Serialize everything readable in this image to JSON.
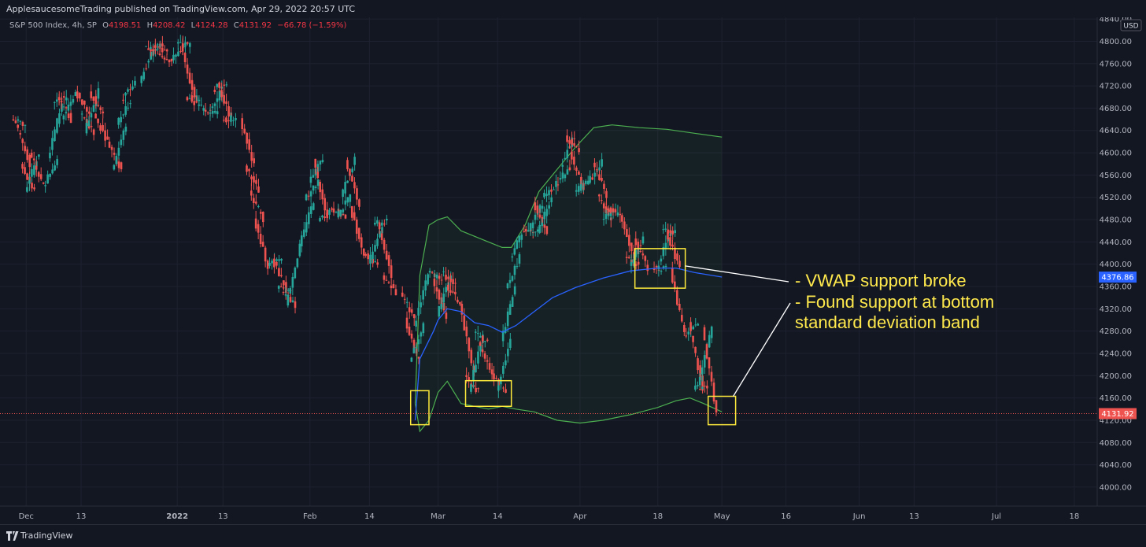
{
  "header": {
    "published_by": "ApplesaucesomeTrading published on TradingView.com, Apr 29, 2022 20:57 UTC"
  },
  "legend": {
    "symbol": "S&P 500 Index, 4h, SP",
    "open_label": "O",
    "open": "4198.51",
    "high_label": "H",
    "high": "4208.42",
    "low_label": "L",
    "low": "4124.28",
    "close_label": "C",
    "close": "4131.92",
    "change": "−66.78 (−1.59%)"
  },
  "footer": {
    "brand": "TradingView",
    "logo_icon": "tradingview-logo-icon"
  },
  "colors": {
    "background": "#131722",
    "up": "#26a69a",
    "down": "#ef5350",
    "vwap": "#2962ff",
    "band": "#4caf50",
    "annotation": "#ffeb3b"
  },
  "annotations": {
    "line1": "- VWAP support broke",
    "line2": "- Found support at bottom",
    "line3": "standard deviation band"
  },
  "chart_data": {
    "type": "candlestick",
    "title": "",
    "currency_label": "USD",
    "ylim": [
      3966,
      4843
    ],
    "y_ticks": [
      4000,
      4040,
      4080,
      4120,
      4160,
      4200,
      4240,
      4280,
      4320,
      4360,
      4400,
      4440,
      4480,
      4520,
      4560,
      4600,
      4640,
      4680,
      4720,
      4760,
      4800,
      4840
    ],
    "y_tick_labels": [
      "4000.00",
      "4040.00",
      "4080.00",
      "4120.00",
      "4160.00",
      "4200.00",
      "4240.00",
      "4280.00",
      "4320.00",
      "4360.00",
      "4400.00",
      "4440.00",
      "4480.00",
      "4520.00",
      "4560.00",
      "4600.00",
      "4640.00",
      "4680.00",
      "4720.00",
      "4760.00",
      "4800.00",
      "4840.00"
    ],
    "x_range": [
      "2021-11-27",
      "2022-07-23"
    ],
    "x_ticks": [
      {
        "date": "2021-12-01",
        "label": "Dec"
      },
      {
        "date": "2021-12-13",
        "label": "13"
      },
      {
        "date": "2022-01-03",
        "label": "2022"
      },
      {
        "date": "2022-01-13",
        "label": "13"
      },
      {
        "date": "2022-02-01",
        "label": "Feb"
      },
      {
        "date": "2022-02-14",
        "label": "14"
      },
      {
        "date": "2022-03-01",
        "label": "Mar"
      },
      {
        "date": "2022-03-14",
        "label": "14"
      },
      {
        "date": "2022-04-01",
        "label": "Apr"
      },
      {
        "date": "2022-04-18",
        "label": "18"
      },
      {
        "date": "2022-05-02",
        "label": "May"
      },
      {
        "date": "2022-05-16",
        "label": "16"
      },
      {
        "date": "2022-06-01",
        "label": "Jun"
      },
      {
        "date": "2022-06-13",
        "label": "13"
      },
      {
        "date": "2022-07-01",
        "label": "Jul"
      },
      {
        "date": "2022-07-18",
        "label": "18"
      }
    ],
    "last_price": 4131.92,
    "last_price_label": "4131.92",
    "vwap_last": 4376.86,
    "vwap_last_label": "4376.86",
    "close_path": [
      {
        "d": "2021-11-29",
        "c": 4650
      },
      {
        "d": "2021-11-30",
        "c": 4580
      },
      {
        "d": "2021-12-01",
        "c": 4530
      },
      {
        "d": "2021-12-02",
        "c": 4600
      },
      {
        "d": "2021-12-03",
        "c": 4540
      },
      {
        "d": "2021-12-06",
        "c": 4590
      },
      {
        "d": "2021-12-07",
        "c": 4690
      },
      {
        "d": "2021-12-08",
        "c": 4700
      },
      {
        "d": "2021-12-09",
        "c": 4660
      },
      {
        "d": "2021-12-10",
        "c": 4710
      },
      {
        "d": "2021-12-13",
        "c": 4670
      },
      {
        "d": "2021-12-14",
        "c": 4635
      },
      {
        "d": "2021-12-15",
        "c": 4710
      },
      {
        "d": "2021-12-16",
        "c": 4670
      },
      {
        "d": "2021-12-17",
        "c": 4620
      },
      {
        "d": "2021-12-20",
        "c": 4570
      },
      {
        "d": "2021-12-21",
        "c": 4650
      },
      {
        "d": "2021-12-22",
        "c": 4695
      },
      {
        "d": "2021-12-23",
        "c": 4725
      },
      {
        "d": "2021-12-27",
        "c": 4790
      },
      {
        "d": "2021-12-28",
        "c": 4786
      },
      {
        "d": "2021-12-29",
        "c": 4793
      },
      {
        "d": "2021-12-30",
        "c": 4778
      },
      {
        "d": "2021-12-31",
        "c": 4766
      },
      {
        "d": "2022-01-03",
        "c": 4796
      },
      {
        "d": "2022-01-04",
        "c": 4793
      },
      {
        "d": "2022-01-05",
        "c": 4700
      },
      {
        "d": "2022-01-06",
        "c": 4696
      },
      {
        "d": "2022-01-07",
        "c": 4677
      },
      {
        "d": "2022-01-10",
        "c": 4670
      },
      {
        "d": "2022-01-11",
        "c": 4713
      },
      {
        "d": "2022-01-12",
        "c": 4726
      },
      {
        "d": "2022-01-13",
        "c": 4659
      },
      {
        "d": "2022-01-14",
        "c": 4662
      },
      {
        "d": "2022-01-18",
        "c": 4577
      },
      {
        "d": "2022-01-19",
        "c": 4532
      },
      {
        "d": "2022-01-20",
        "c": 4482
      },
      {
        "d": "2022-01-21",
        "c": 4397
      },
      {
        "d": "2022-01-24",
        "c": 4410
      },
      {
        "d": "2022-01-25",
        "c": 4356
      },
      {
        "d": "2022-01-26",
        "c": 4350
      },
      {
        "d": "2022-01-27",
        "c": 4326
      },
      {
        "d": "2022-01-28",
        "c": 4432
      },
      {
        "d": "2022-01-31",
        "c": 4515
      },
      {
        "d": "2022-02-01",
        "c": 4546
      },
      {
        "d": "2022-02-02",
        "c": 4589
      },
      {
        "d": "2022-02-03",
        "c": 4477
      },
      {
        "d": "2022-02-04",
        "c": 4500
      },
      {
        "d": "2022-02-07",
        "c": 4484
      },
      {
        "d": "2022-02-08",
        "c": 4521
      },
      {
        "d": "2022-02-09",
        "c": 4587
      },
      {
        "d": "2022-02-10",
        "c": 4504
      },
      {
        "d": "2022-02-11",
        "c": 4418
      },
      {
        "d": "2022-02-14",
        "c": 4401
      },
      {
        "d": "2022-02-15",
        "c": 4471
      },
      {
        "d": "2022-02-16",
        "c": 4475
      },
      {
        "d": "2022-02-17",
        "c": 4380
      },
      {
        "d": "2022-02-18",
        "c": 4349
      },
      {
        "d": "2022-02-22",
        "c": 4304
      },
      {
        "d": "2022-02-23",
        "c": 4225
      },
      {
        "d": "2022-02-24",
        "c": 4288
      },
      {
        "d": "2022-02-25",
        "c": 4385
      },
      {
        "d": "2022-02-28",
        "c": 4374
      },
      {
        "d": "2022-03-01",
        "c": 4306
      },
      {
        "d": "2022-03-02",
        "c": 4386
      },
      {
        "d": "2022-03-03",
        "c": 4363
      },
      {
        "d": "2022-03-04",
        "c": 4329
      },
      {
        "d": "2022-03-07",
        "c": 4201
      },
      {
        "d": "2022-03-08",
        "c": 4171
      },
      {
        "d": "2022-03-09",
        "c": 4277
      },
      {
        "d": "2022-03-10",
        "c": 4260
      },
      {
        "d": "2022-03-11",
        "c": 4204
      },
      {
        "d": "2022-03-14",
        "c": 4173
      },
      {
        "d": "2022-03-15",
        "c": 4262
      },
      {
        "d": "2022-03-16",
        "c": 4357
      },
      {
        "d": "2022-03-17",
        "c": 4412
      },
      {
        "d": "2022-03-18",
        "c": 4463
      },
      {
        "d": "2022-03-21",
        "c": 4461
      },
      {
        "d": "2022-03-22",
        "c": 4511
      },
      {
        "d": "2022-03-23",
        "c": 4456
      },
      {
        "d": "2022-03-24",
        "c": 4520
      },
      {
        "d": "2022-03-25",
        "c": 4543
      },
      {
        "d": "2022-03-28",
        "c": 4575
      },
      {
        "d": "2022-03-29",
        "c": 4631
      },
      {
        "d": "2022-03-30",
        "c": 4602
      },
      {
        "d": "2022-03-31",
        "c": 4530
      },
      {
        "d": "2022-04-01",
        "c": 4546
      },
      {
        "d": "2022-04-04",
        "c": 4582
      },
      {
        "d": "2022-04-05",
        "c": 4525
      },
      {
        "d": "2022-04-06",
        "c": 4481
      },
      {
        "d": "2022-04-07",
        "c": 4500
      },
      {
        "d": "2022-04-08",
        "c": 4488
      },
      {
        "d": "2022-04-11",
        "c": 4413
      },
      {
        "d": "2022-04-12",
        "c": 4397
      },
      {
        "d": "2022-04-13",
        "c": 4446
      },
      {
        "d": "2022-04-14",
        "c": 4392
      },
      {
        "d": "2022-04-18",
        "c": 4391
      },
      {
        "d": "2022-04-19",
        "c": 4462
      },
      {
        "d": "2022-04-20",
        "c": 4459
      },
      {
        "d": "2022-04-21",
        "c": 4393
      },
      {
        "d": "2022-04-22",
        "c": 4272
      },
      {
        "d": "2022-04-25",
        "c": 4296
      },
      {
        "d": "2022-04-26",
        "c": 4175
      },
      {
        "d": "2022-04-27",
        "c": 4183
      },
      {
        "d": "2022-04-28",
        "c": 4287
      },
      {
        "d": "2022-04-29",
        "c": 4132
      }
    ],
    "vwap": [
      {
        "d": "2022-02-24",
        "v": 4120
      },
      {
        "d": "2022-02-25",
        "v": 4230
      },
      {
        "d": "2022-02-28",
        "v": 4280
      },
      {
        "d": "2022-03-01",
        "v": 4300
      },
      {
        "d": "2022-03-03",
        "v": 4320
      },
      {
        "d": "2022-03-06",
        "v": 4315
      },
      {
        "d": "2022-03-09",
        "v": 4295
      },
      {
        "d": "2022-03-12",
        "v": 4290
      },
      {
        "d": "2022-03-15",
        "v": 4278
      },
      {
        "d": "2022-03-18",
        "v": 4290
      },
      {
        "d": "2022-03-22",
        "v": 4315
      },
      {
        "d": "2022-03-26",
        "v": 4340
      },
      {
        "d": "2022-03-31",
        "v": 4358
      },
      {
        "d": "2022-04-06",
        "v": 4375
      },
      {
        "d": "2022-04-12",
        "v": 4388
      },
      {
        "d": "2022-04-18",
        "v": 4393
      },
      {
        "d": "2022-04-22",
        "v": 4393
      },
      {
        "d": "2022-04-26",
        "v": 4385
      },
      {
        "d": "2022-05-02",
        "v": 4377
      }
    ],
    "upper_band": [
      {
        "d": "2022-02-24",
        "v": 4150
      },
      {
        "d": "2022-02-25",
        "v": 4380
      },
      {
        "d": "2022-02-27",
        "v": 4470
      },
      {
        "d": "2022-03-01",
        "v": 4480
      },
      {
        "d": "2022-03-03",
        "v": 4485
      },
      {
        "d": "2022-03-06",
        "v": 4460
      },
      {
        "d": "2022-03-09",
        "v": 4450
      },
      {
        "d": "2022-03-12",
        "v": 4440
      },
      {
        "d": "2022-03-15",
        "v": 4430
      },
      {
        "d": "2022-03-17",
        "v": 4430
      },
      {
        "d": "2022-03-20",
        "v": 4470
      },
      {
        "d": "2022-03-23",
        "v": 4530
      },
      {
        "d": "2022-03-27",
        "v": 4570
      },
      {
        "d": "2022-03-31",
        "v": 4610
      },
      {
        "d": "2022-04-04",
        "v": 4645
      },
      {
        "d": "2022-04-08",
        "v": 4650
      },
      {
        "d": "2022-04-14",
        "v": 4645
      },
      {
        "d": "2022-04-20",
        "v": 4642
      },
      {
        "d": "2022-04-26",
        "v": 4635
      },
      {
        "d": "2022-05-02",
        "v": 4628
      }
    ],
    "lower_band": [
      {
        "d": "2022-02-24",
        "v": 4150
      },
      {
        "d": "2022-02-25",
        "v": 4100
      },
      {
        "d": "2022-02-27",
        "v": 4120
      },
      {
        "d": "2022-03-01",
        "v": 4170
      },
      {
        "d": "2022-03-03",
        "v": 4190
      },
      {
        "d": "2022-03-06",
        "v": 4150
      },
      {
        "d": "2022-03-09",
        "v": 4145
      },
      {
        "d": "2022-03-12",
        "v": 4140
      },
      {
        "d": "2022-03-15",
        "v": 4145
      },
      {
        "d": "2022-03-18",
        "v": 4140
      },
      {
        "d": "2022-03-22",
        "v": 4135
      },
      {
        "d": "2022-03-27",
        "v": 4120
      },
      {
        "d": "2022-04-01",
        "v": 4115
      },
      {
        "d": "2022-04-06",
        "v": 4120
      },
      {
        "d": "2022-04-12",
        "v": 4130
      },
      {
        "d": "2022-04-18",
        "v": 4143
      },
      {
        "d": "2022-04-22",
        "v": 4155
      },
      {
        "d": "2022-04-25",
        "v": 4160
      },
      {
        "d": "2022-04-28",
        "v": 4150
      },
      {
        "d": "2022-05-02",
        "v": 4135
      }
    ],
    "highlight_boxes": [
      {
        "from": "2022-02-23",
        "to": "2022-02-27",
        "low": 4112,
        "high": 4173
      },
      {
        "from": "2022-03-07",
        "to": "2022-03-17",
        "low": 4145,
        "high": 4191
      },
      {
        "from": "2022-04-13",
        "to": "2022-04-24",
        "low": 4357,
        "high": 4428
      },
      {
        "from": "2022-04-29",
        "to": "2022-05-05",
        "low": 4112,
        "high": 4163
      }
    ]
  }
}
